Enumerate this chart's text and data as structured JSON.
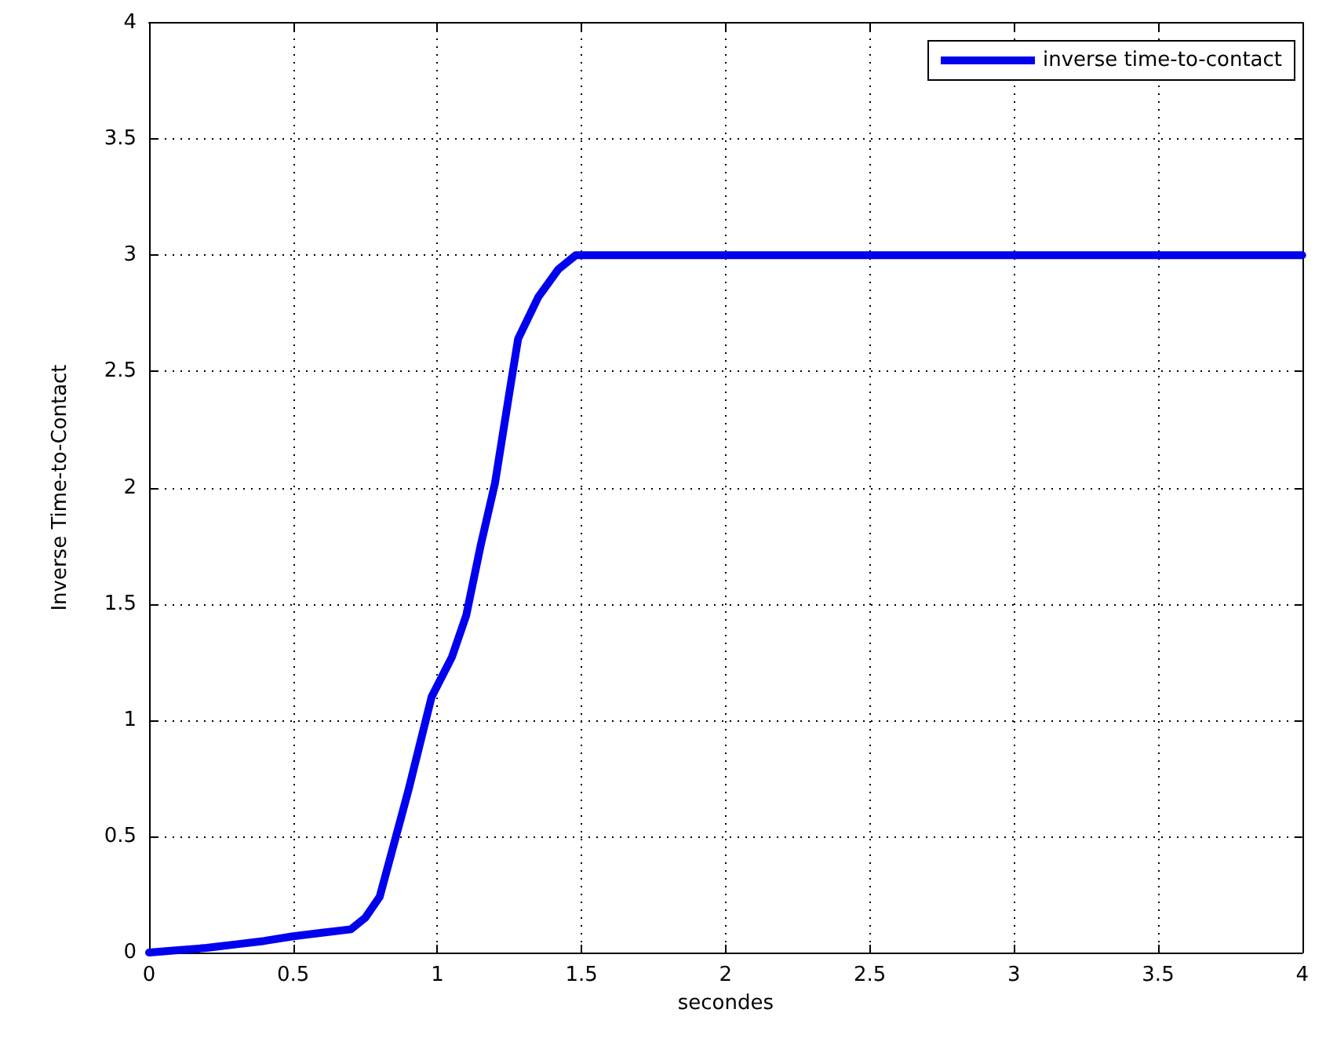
{
  "chart_data": {
    "type": "line",
    "xlabel": "secondes",
    "ylabel": "Inverse Time-to-Contact",
    "x": [
      0,
      0.1,
      0.2,
      0.3,
      0.4,
      0.5,
      0.6,
      0.7,
      0.75,
      0.8,
      0.85,
      0.9,
      0.95,
      0.98,
      1.05,
      1.1,
      1.15,
      1.2,
      1.25,
      1.28,
      1.35,
      1.42,
      1.48,
      2,
      2.5,
      3,
      3.5,
      4
    ],
    "series": [
      {
        "name": "inverse time-to-contact",
        "color": "#0000ee",
        "values": [
          0,
          0.01,
          0.02,
          0.035,
          0.05,
          0.07,
          0.085,
          0.1,
          0.15,
          0.24,
          0.47,
          0.7,
          0.95,
          1.1,
          1.27,
          1.45,
          1.75,
          2.02,
          2.41,
          2.64,
          2.82,
          2.94,
          3,
          3,
          3,
          3,
          3,
          3
        ]
      }
    ],
    "xlim": [
      0,
      4
    ],
    "xticks": [
      0,
      0.5,
      1,
      1.5,
      2,
      2.5,
      3,
      3.5,
      4
    ],
    "ylim": [
      0,
      4
    ],
    "yticks": [
      0,
      0.5,
      1,
      1.5,
      2,
      2.5,
      3,
      3.5,
      4
    ],
    "grid": true,
    "legend": "top right",
    "marker": "none",
    "line_style": "solid"
  }
}
